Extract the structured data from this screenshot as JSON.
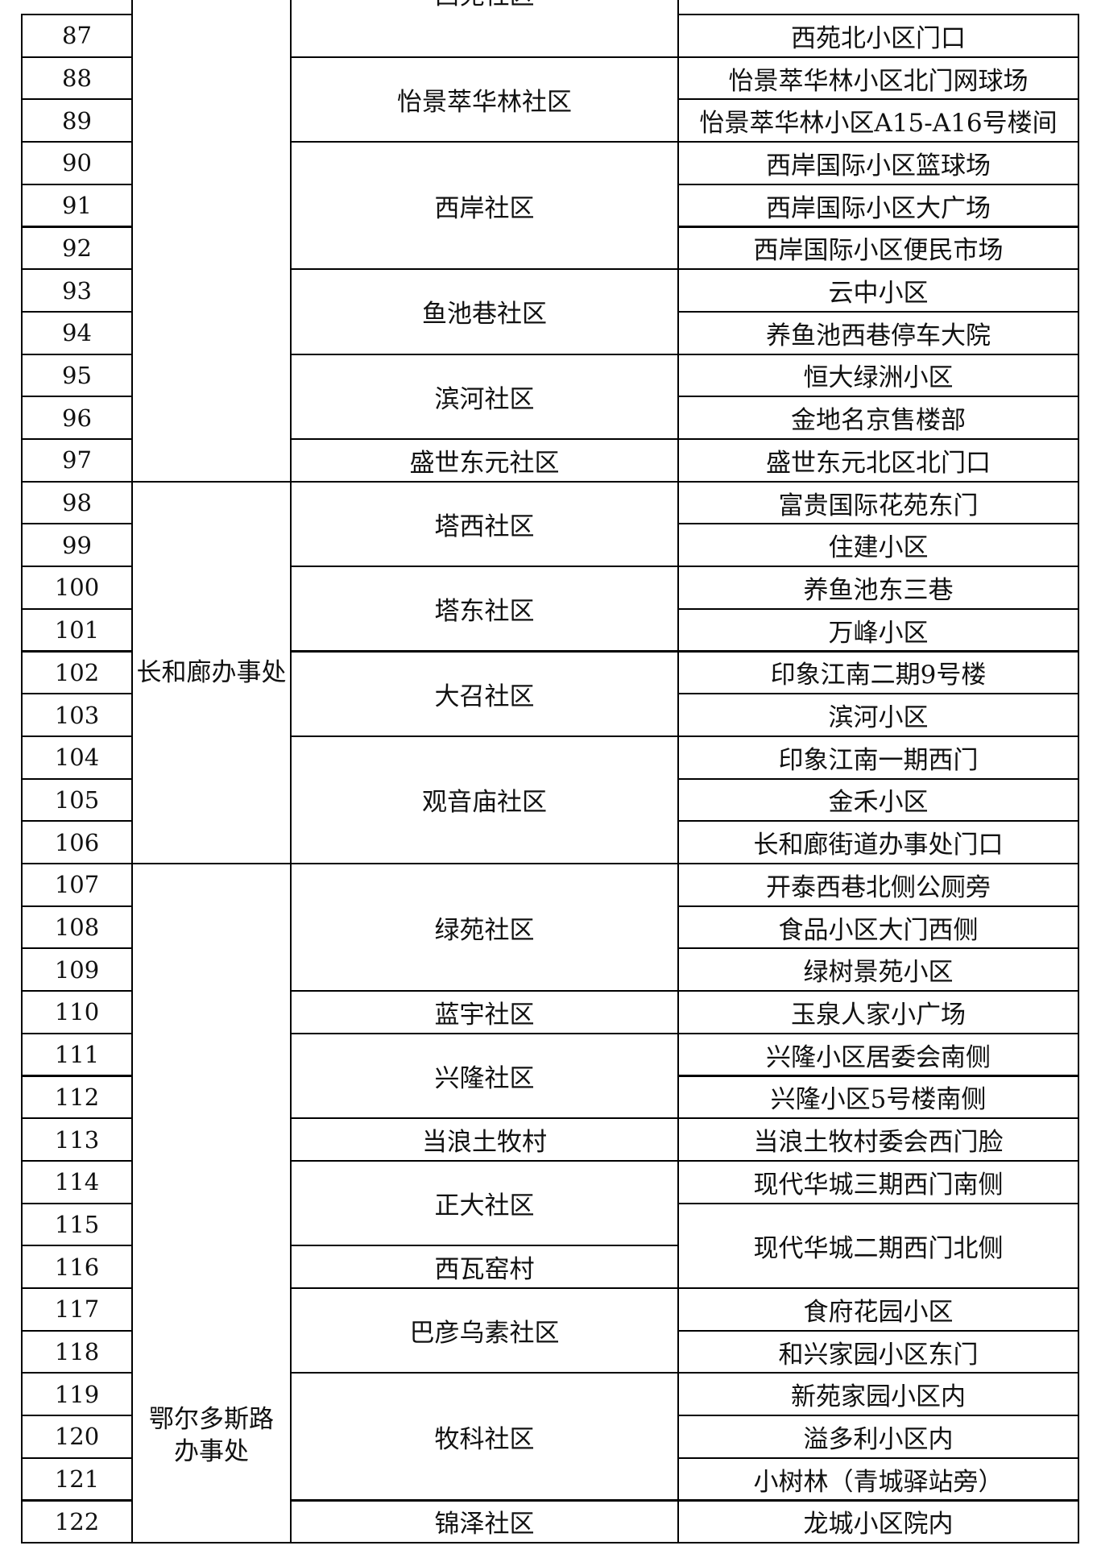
{
  "table": {
    "numbers": [
      87,
      88,
      89,
      90,
      91,
      92,
      93,
      94,
      95,
      96,
      97,
      98,
      99,
      100,
      101,
      102,
      103,
      104,
      105,
      106,
      107,
      108,
      109,
      110,
      111,
      112,
      113,
      114,
      115,
      116,
      117,
      118,
      119,
      120,
      121,
      122
    ],
    "offices": [
      {
        "rows": 11
      },
      {
        "name_lines": [
          "长和廊办事处"
        ],
        "rows": 9
      },
      {
        "name_lines": [
          "鄂尔多斯路",
          "办事处"
        ],
        "rows": 16
      }
    ],
    "communities": [
      {
        "name": "西苑社区",
        "rows": 1
      },
      {
        "name": "怡景萃华林社区",
        "rows": 2
      },
      {
        "name": "西岸社区",
        "rows": 3
      },
      {
        "name": "鱼池巷社区",
        "rows": 2
      },
      {
        "name": "滨河社区",
        "rows": 2
      },
      {
        "name": "盛世东元社区",
        "rows": 1
      },
      {
        "name": "塔西社区",
        "rows": 2
      },
      {
        "name": "塔东社区",
        "rows": 2
      },
      {
        "name": "大召社区",
        "rows": 2
      },
      {
        "name": "观音庙社区",
        "rows": 3
      },
      {
        "name": "绿苑社区",
        "rows": 3
      },
      {
        "name": "蓝宇社区",
        "rows": 1
      },
      {
        "name": "兴隆社区",
        "rows": 2
      },
      {
        "name": "当浪土牧村",
        "rows": 1
      },
      {
        "name": "正大社区",
        "rows": 2
      },
      {
        "name": "西瓦窑村",
        "rows": 1
      },
      {
        "name": "巴彦乌素社区",
        "rows": 2
      },
      {
        "name": "牧科社区",
        "rows": 3
      },
      {
        "name": "锦泽社区",
        "rows": 1
      }
    ],
    "sites": [
      {
        "name": "西苑北小区门口",
        "rows": 1
      },
      {
        "name": "怡景萃华林小区北门网球场",
        "rows": 1
      },
      {
        "name": "怡景萃华林小区A15-A16号楼间",
        "rows": 1
      },
      {
        "name": "西岸国际小区篮球场",
        "rows": 1
      },
      {
        "name": "西岸国际小区大广场",
        "rows": 1
      },
      {
        "name": "西岸国际小区便民市场",
        "rows": 1
      },
      {
        "name": "云中小区",
        "rows": 1
      },
      {
        "name": "养鱼池西巷停车大院",
        "rows": 1
      },
      {
        "name": "恒大绿洲小区",
        "rows": 1
      },
      {
        "name": "金地名京售楼部",
        "rows": 1
      },
      {
        "name": "盛世东元北区北门口",
        "rows": 1
      },
      {
        "name": "富贵国际花苑东门",
        "rows": 1
      },
      {
        "name": "住建小区",
        "rows": 1
      },
      {
        "name": "养鱼池东三巷",
        "rows": 1
      },
      {
        "name": "万峰小区",
        "rows": 1
      },
      {
        "name": "印象江南二期9号楼",
        "rows": 1
      },
      {
        "name": "滨河小区",
        "rows": 1
      },
      {
        "name": "印象江南一期西门",
        "rows": 1
      },
      {
        "name": "金禾小区",
        "rows": 1
      },
      {
        "name": "长和廊街道办事处门口",
        "rows": 1
      },
      {
        "name": "开泰西巷北侧公厕旁",
        "rows": 1
      },
      {
        "name": "食品小区大门西侧",
        "rows": 1
      },
      {
        "name": "绿树景苑小区",
        "rows": 1
      },
      {
        "name": "玉泉人家小广场",
        "rows": 1
      },
      {
        "name": "兴隆小区居委会南侧",
        "rows": 1
      },
      {
        "name": "兴隆小区5号楼南侧",
        "rows": 1
      },
      {
        "name": "当浪土牧村委会西门脸",
        "rows": 1
      },
      {
        "name": "现代华城三期西门南侧",
        "rows": 1
      },
      {
        "name": "现代华城二期西门北侧",
        "rows": 2
      },
      {
        "name": "食府花园小区",
        "rows": 1
      },
      {
        "name": "和兴家园小区东门",
        "rows": 1
      },
      {
        "name": "新苑家园小区内",
        "rows": 1
      },
      {
        "name": "溢多利小区内",
        "rows": 1
      },
      {
        "name": "小树林（青城驿站旁）",
        "rows": 1
      },
      {
        "name": "龙城小区院内",
        "rows": 1
      }
    ]
  }
}
